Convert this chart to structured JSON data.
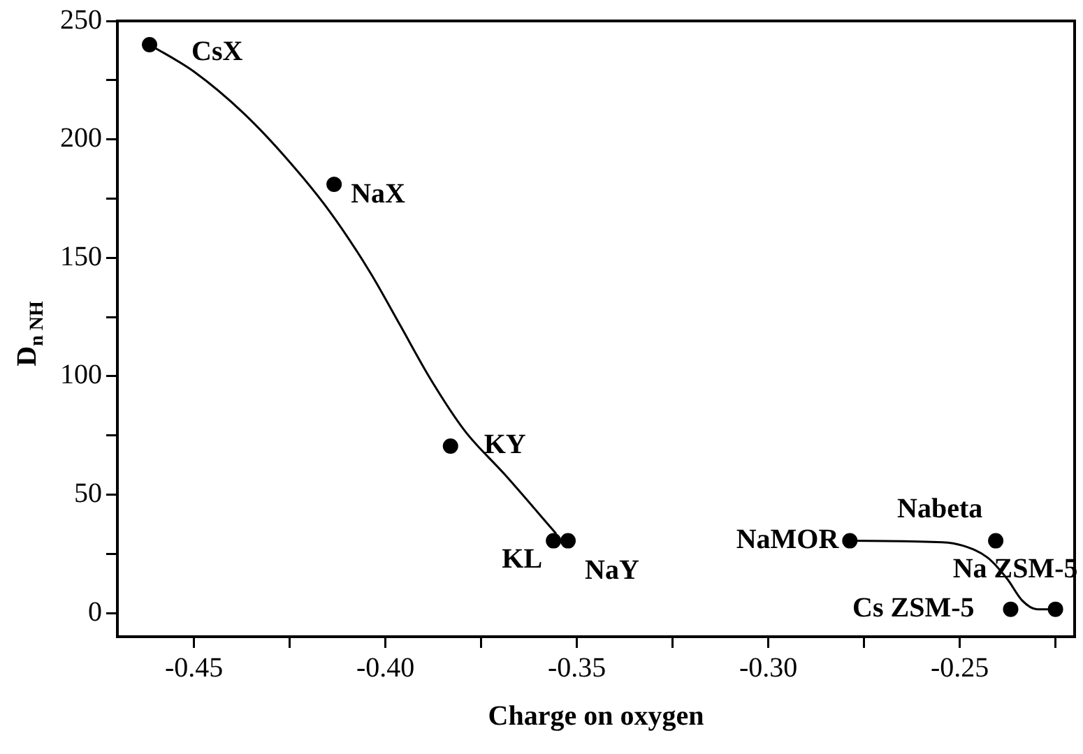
{
  "chart_data": {
    "type": "scatter",
    "xlabel": "Charge on oxygen",
    "ylabel": "D$_{n NH}$",
    "xlim": [
      -0.47,
      -0.22
    ],
    "ylim": [
      -10,
      250
    ],
    "xticks": [
      {
        "value": -0.45,
        "label": "-0.45"
      },
      {
        "value": -0.425,
        "label": null
      },
      {
        "value": -0.4,
        "label": "-0.40"
      },
      {
        "value": -0.375,
        "label": null
      },
      {
        "value": -0.35,
        "label": "-0.35"
      },
      {
        "value": -0.325,
        "label": null
      },
      {
        "value": -0.3,
        "label": "-0.30"
      },
      {
        "value": -0.275,
        "label": null
      },
      {
        "value": -0.25,
        "label": "-0.25"
      },
      {
        "value": -0.225,
        "label": null
      }
    ],
    "yticks": [
      0,
      {
        "value": 25,
        "label": null
      },
      50,
      {
        "value": 75,
        "label": null
      },
      100,
      {
        "value": 125,
        "label": null
      },
      150,
      {
        "value": 175,
        "label": null
      },
      200,
      {
        "value": 225,
        "label": null
      },
      250
    ],
    "grid": false,
    "legend": false,
    "marker": "circle",
    "series": [
      {
        "type": "scatter",
        "color": "#000000",
        "x": [
          -0.4616,
          -0.4134,
          -0.383,
          -0.3561,
          -0.3523,
          -0.2787,
          -0.2406,
          -0.2367,
          -0.225
        ],
        "values": [
          240,
          181,
          70.5,
          30.5,
          30.5,
          30.5,
          30.5,
          1.6,
          1.6
        ]
      },
      {
        "type": "line",
        "color": "#000000",
        "marker": "none",
        "x": [
          -0.4616,
          -0.4499,
          -0.437,
          -0.4253,
          -0.4143,
          -0.4039,
          -0.3961,
          -0.3883,
          -0.3793,
          -0.369,
          -0.3554
        ],
        "values": [
          240,
          228.5,
          211,
          191,
          169,
          143.6,
          121.4,
          99,
          77,
          58.8,
          33.5
        ]
      },
      {
        "type": "line",
        "color": "#000000",
        "marker": "none",
        "x": [
          -0.2787,
          -0.2545,
          -0.2493,
          -0.2428,
          -0.2376,
          -0.2337,
          -0.2298,
          -0.225
        ],
        "values": [
          30.5,
          29.9,
          28.5,
          23.5,
          14.4,
          5.3,
          1.6,
          1.6
        ]
      }
    ],
    "annotations": [
      {
        "text": "CsX",
        "x": -0.4616,
        "y": 240
      },
      {
        "text": "NaX",
        "x": -0.4134,
        "y": 181
      },
      {
        "text": "KY",
        "x": -0.383,
        "y": 70.5
      },
      {
        "text": "KL",
        "x": -0.3561,
        "y": 30.5
      },
      {
        "text": "NaY",
        "x": -0.3523,
        "y": 30.5
      },
      {
        "text": "NaMOR",
        "x": -0.2787,
        "y": 30.5
      },
      {
        "text": "Nabeta",
        "x": -0.2406,
        "y": 30.5
      },
      {
        "text": "Na ZSM-5",
        "x": -0.225,
        "y": 1.6
      },
      {
        "text": "Cs ZSM-5",
        "x": -0.2367,
        "y": 1.6
      }
    ]
  }
}
